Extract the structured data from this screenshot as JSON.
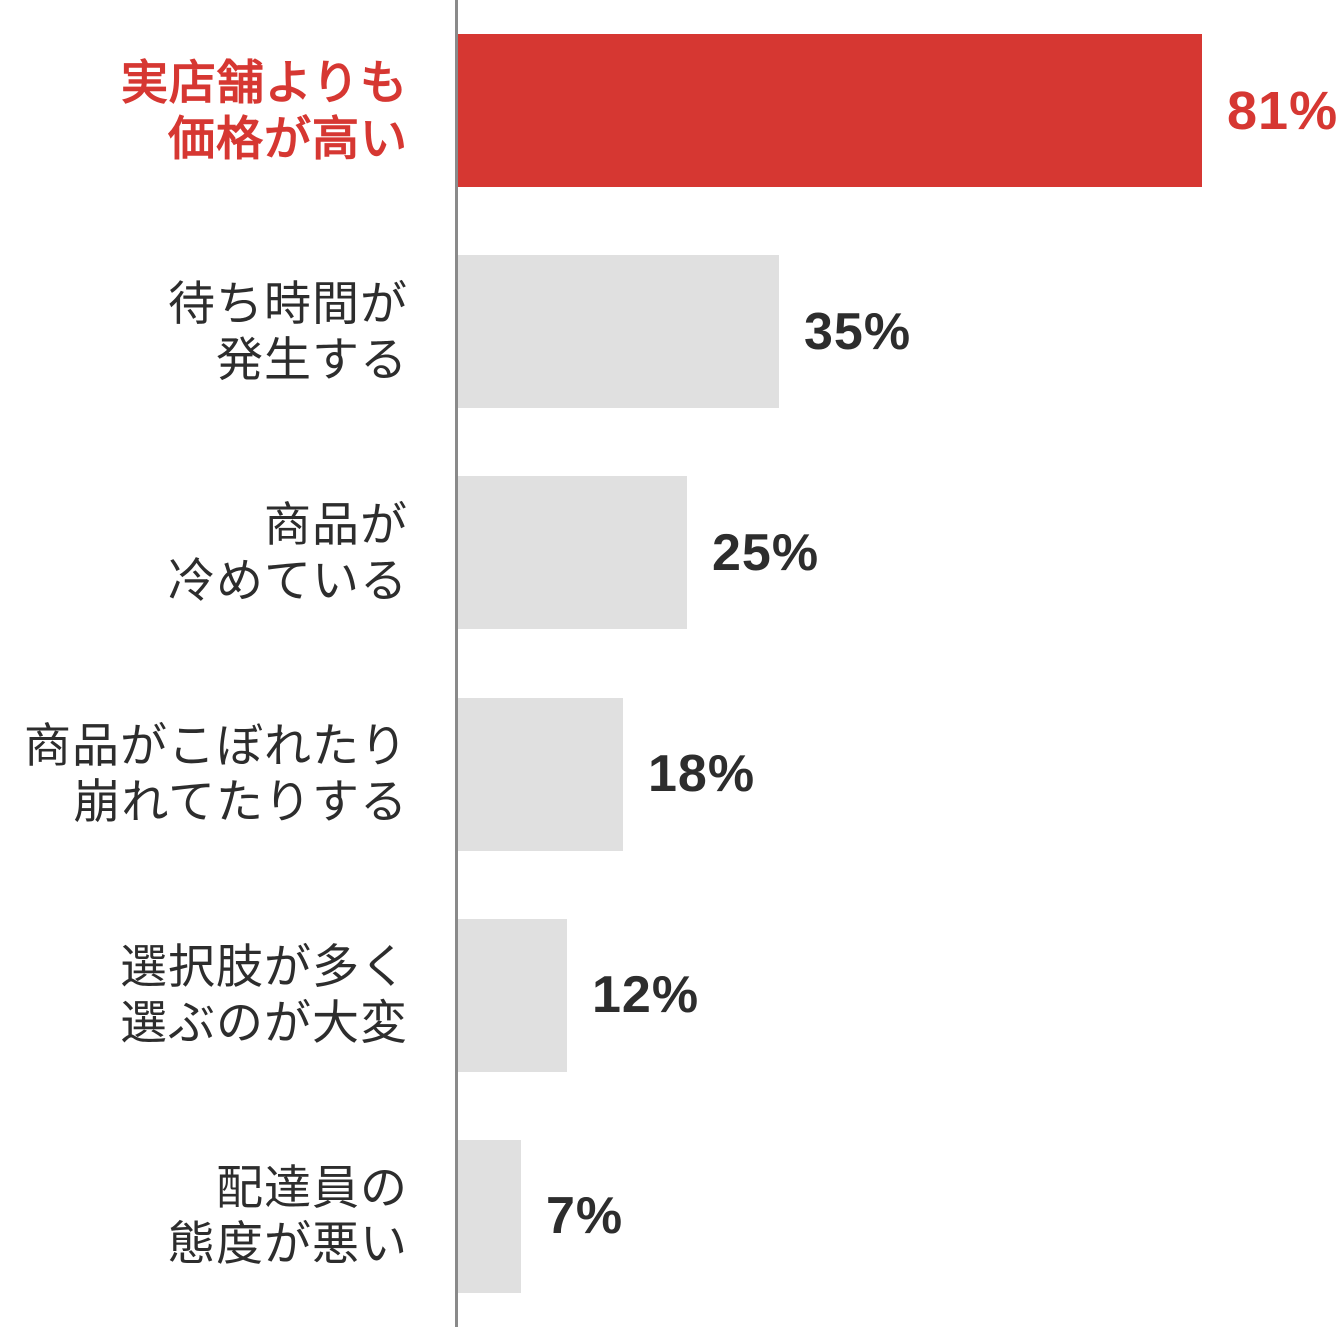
{
  "chart_data": {
    "type": "bar",
    "orientation": "horizontal",
    "title": "",
    "xlabel": "",
    "ylabel": "",
    "xlim": [
      0,
      100
    ],
    "unit": "%",
    "grid": false,
    "legend": false,
    "categories": [
      "実店舗よりも価格が高い",
      "待ち時間が発生する",
      "商品が冷めている",
      "商品がこぼれたり崩れてたりする",
      "選択肢が多く選ぶのが大変",
      "配達員の態度が悪い"
    ],
    "values": [
      81,
      35,
      25,
      18,
      12,
      7
    ],
    "rows": [
      {
        "label_line1": "実店舗よりも",
        "label_line2": "価格が高い",
        "value": 81,
        "value_label": "81%",
        "highlight": true
      },
      {
        "label_line1": "待ち時間が",
        "label_line2": "発生する",
        "value": 35,
        "value_label": "35%",
        "highlight": false
      },
      {
        "label_line1": "商品が",
        "label_line2": "冷めている",
        "value": 25,
        "value_label": "25%",
        "highlight": false
      },
      {
        "label_line1": "商品がこぼれたり",
        "label_line2": "崩れてたりする",
        "value": 18,
        "value_label": "18%",
        "highlight": false
      },
      {
        "label_line1": "選択肢が多く",
        "label_line2": "選ぶのが大変",
        "value": 12,
        "value_label": "12%",
        "highlight": false
      },
      {
        "label_line1": "配達員の",
        "label_line2": "態度が悪い",
        "value": 7,
        "value_label": "7%",
        "highlight": false
      }
    ],
    "colors": {
      "highlight_bar": "#d63732",
      "bar": "#e0e0e0",
      "highlight_label": "#d63732",
      "label_text": "#2d2d2d",
      "value_text": "#2d2d2d",
      "axis_line": "#8a8a8a"
    }
  }
}
